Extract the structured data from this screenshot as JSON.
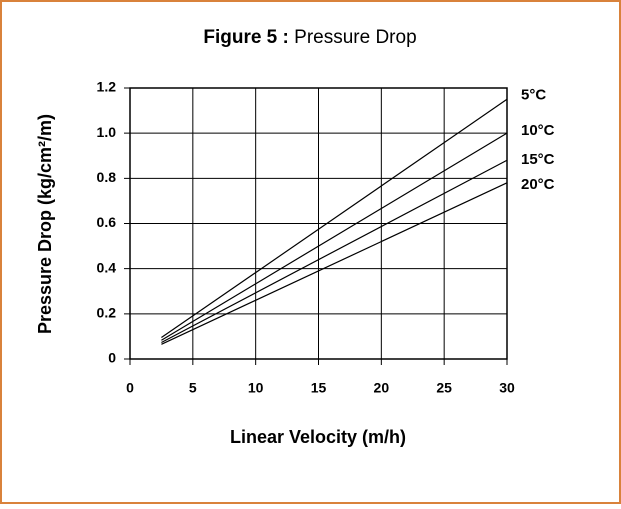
{
  "chart_data": {
    "type": "line",
    "title_label": "Figure 5 :",
    "title": "Pressure Drop",
    "xlabel": "Linear Velocity (m/h)",
    "ylabel": "Pressure Drop (kg/cm²/m)",
    "x": [
      2.5,
      30
    ],
    "series": [
      {
        "name": "5°C",
        "color": "#000000",
        "values": [
          0.095,
          1.15
        ]
      },
      {
        "name": "10°C",
        "color": "#000000",
        "values": [
          0.083,
          1.0
        ]
      },
      {
        "name": "15°C",
        "color": "#000000",
        "values": [
          0.073,
          0.88
        ]
      },
      {
        "name": "20°C",
        "color": "#000000",
        "values": [
          0.065,
          0.78
        ]
      }
    ],
    "xlim": [
      0,
      30
    ],
    "xticks": [
      0,
      5,
      10,
      15,
      20,
      25,
      30
    ],
    "ylim": [
      0,
      1.2
    ],
    "yticks": [
      0,
      0.2,
      0.4,
      0.6,
      0.8,
      {
        "value": 1,
        "label": "1.0"
      },
      1.2
    ],
    "grid": true,
    "frame_color": "#d9823b"
  }
}
